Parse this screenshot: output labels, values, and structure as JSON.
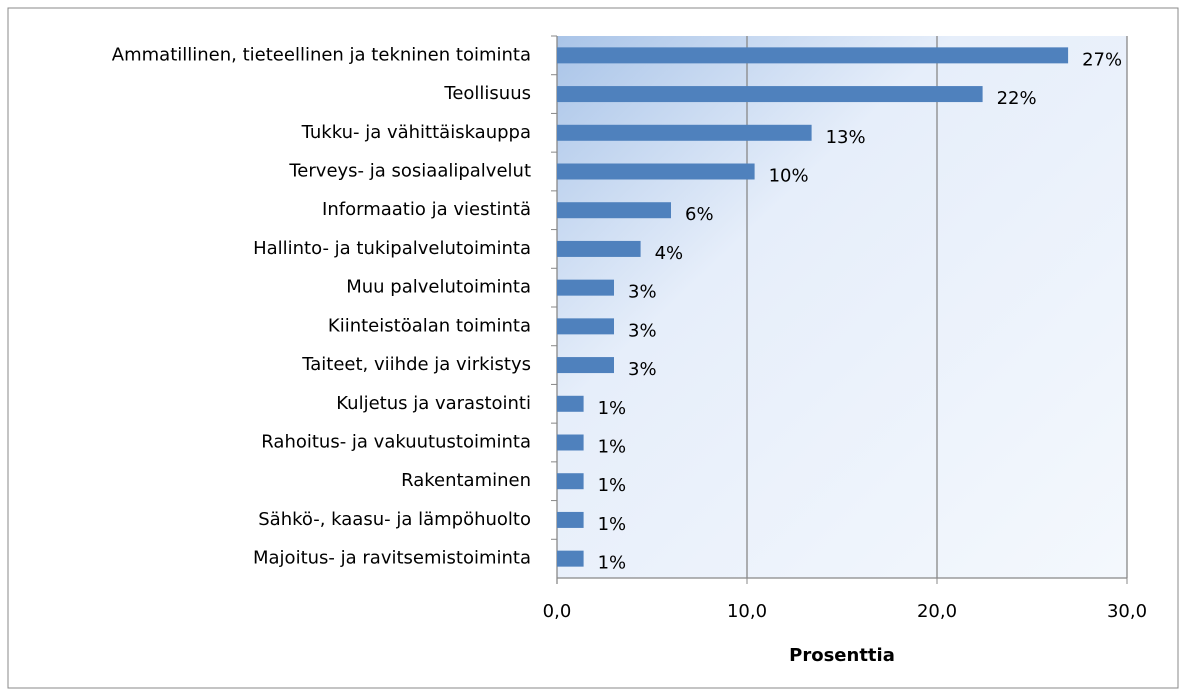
{
  "chart_data": {
    "type": "bar",
    "orientation": "horizontal",
    "x_label": "Prosenttia",
    "categories": [
      "Ammatillinen, tieteellinen ja tekninen toiminta",
      "Teollisuus",
      "Tukku- ja vähittäiskauppa",
      "Terveys- ja sosiaalipalvelut",
      "Informaatio ja viestintä",
      "Hallinto- ja tukipalvelutoiminta",
      "Muu palvelutoiminta",
      "Kiinteistöalan toiminta",
      "Taiteet, viihde ja virkistys",
      "Kuljetus ja varastointi",
      "Rahoitus- ja vakuutustoiminta",
      "Rakentaminen",
      "Sähkö-, kaasu- ja lämpöhuolto",
      "Majoitus- ja ravitsemistoiminta"
    ],
    "values": [
      26.9,
      22.4,
      13.4,
      10.4,
      6.0,
      4.4,
      3.0,
      3.0,
      3.0,
      1.4,
      1.4,
      1.4,
      1.4,
      1.4
    ],
    "value_labels": [
      "27%",
      "22%",
      "13%",
      "10%",
      "6%",
      "4%",
      "3%",
      "3%",
      "3%",
      "1%",
      "1%",
      "1%",
      "1%",
      "1%"
    ],
    "color": "#4f81bd",
    "xlim": [
      0,
      30
    ],
    "xticks": [
      {
        "value": 0,
        "label": "0,0"
      },
      {
        "value": 10,
        "label": "10,0"
      },
      {
        "value": 20,
        "label": "20,0"
      },
      {
        "value": 30,
        "label": "30,0"
      }
    ],
    "grid": true
  }
}
